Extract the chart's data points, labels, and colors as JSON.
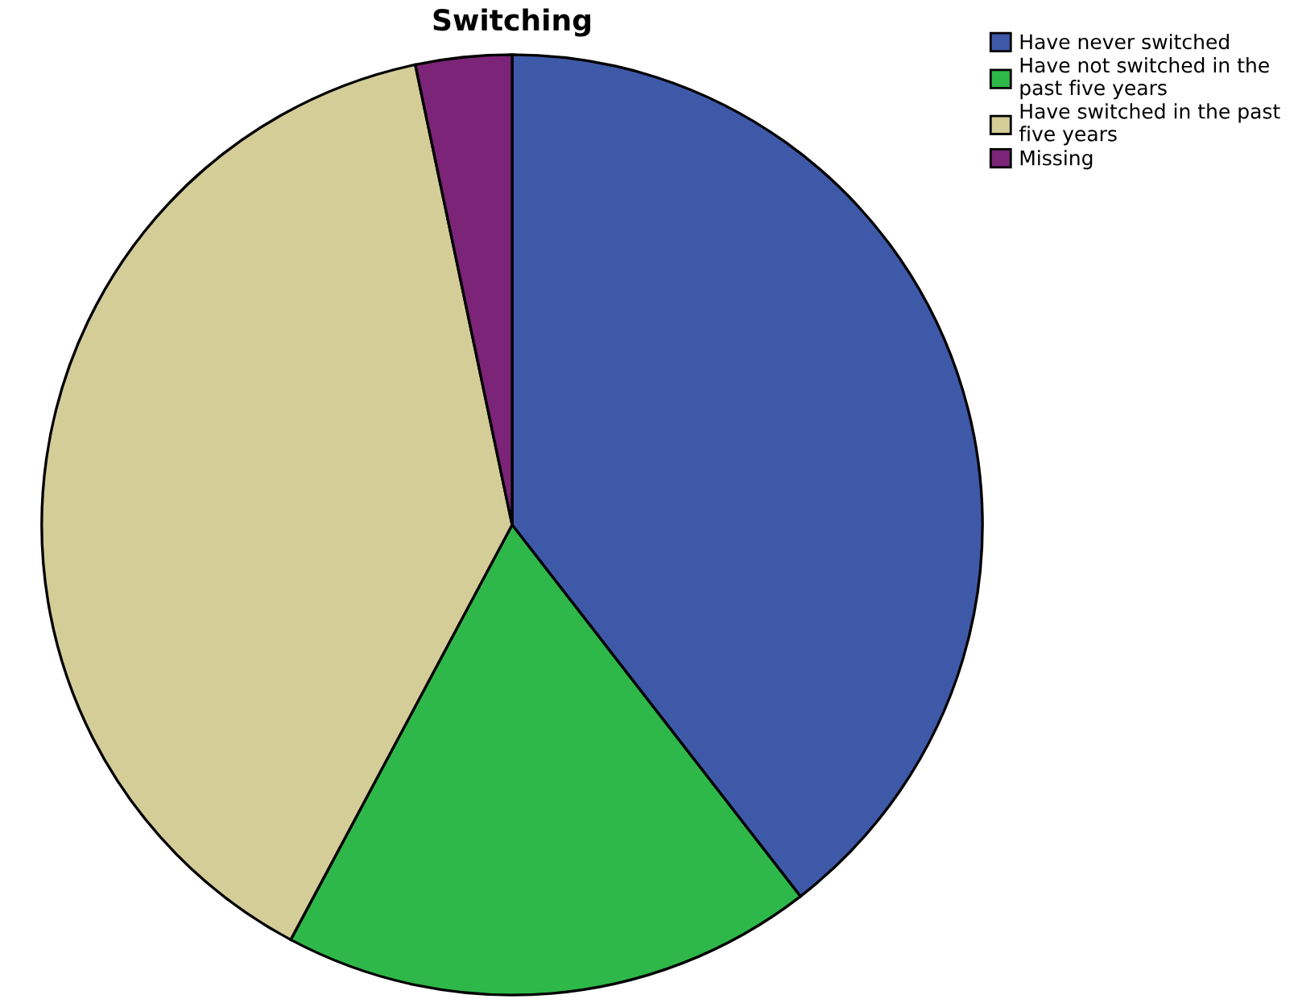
{
  "chart_data": {
    "type": "pie",
    "title": "Switching",
    "categories": [
      "Have never switched",
      "Have not switched in the\npast five years",
      "Have switched in the past\nfive years",
      "Missing"
    ],
    "values": [
      39.5,
      18.3,
      38.9,
      3.3
    ],
    "colors": [
      "#3f59a9",
      "#2eb84a",
      "#d4cd98",
      "#7b2478"
    ],
    "legend": "top right"
  }
}
